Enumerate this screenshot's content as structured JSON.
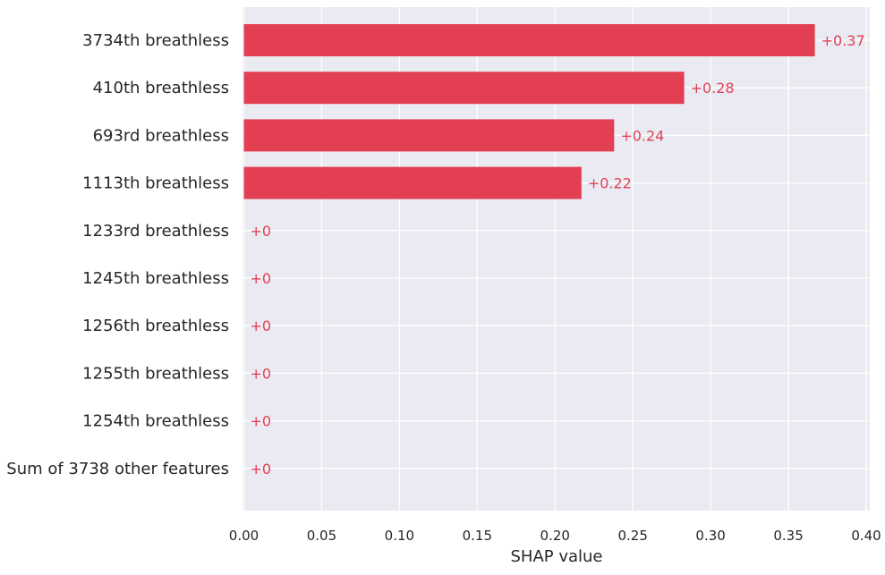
{
  "chart_data": {
    "type": "bar",
    "orientation": "horizontal",
    "categories": [
      "3734th breathless",
      "410th breathless",
      "693rd breathless",
      "1113th breathless",
      "1233rd breathless",
      "1245th breathless",
      "1256th breathless",
      "1255th breathless",
      "1254th breathless",
      "Sum of 3738 other features"
    ],
    "values": [
      0.367,
      0.283,
      0.238,
      0.217,
      0,
      0,
      0,
      0,
      0,
      0
    ],
    "value_labels": [
      "+0.37",
      "+0.28",
      "+0.24",
      "+0.22",
      "+0",
      "+0",
      "+0",
      "+0",
      "+0",
      "+0"
    ],
    "xlabel": "SHAP value",
    "ylabel": "",
    "xlim": [
      0,
      0.405
    ],
    "xticks": [
      "0.00",
      "0.05",
      "0.10",
      "0.15",
      "0.20",
      "0.25",
      "0.30",
      "0.35",
      "0.40"
    ],
    "grid": true,
    "bar_color": "#e23f53",
    "label_color": "#e23f53",
    "background_color": "#eaeaf2"
  }
}
